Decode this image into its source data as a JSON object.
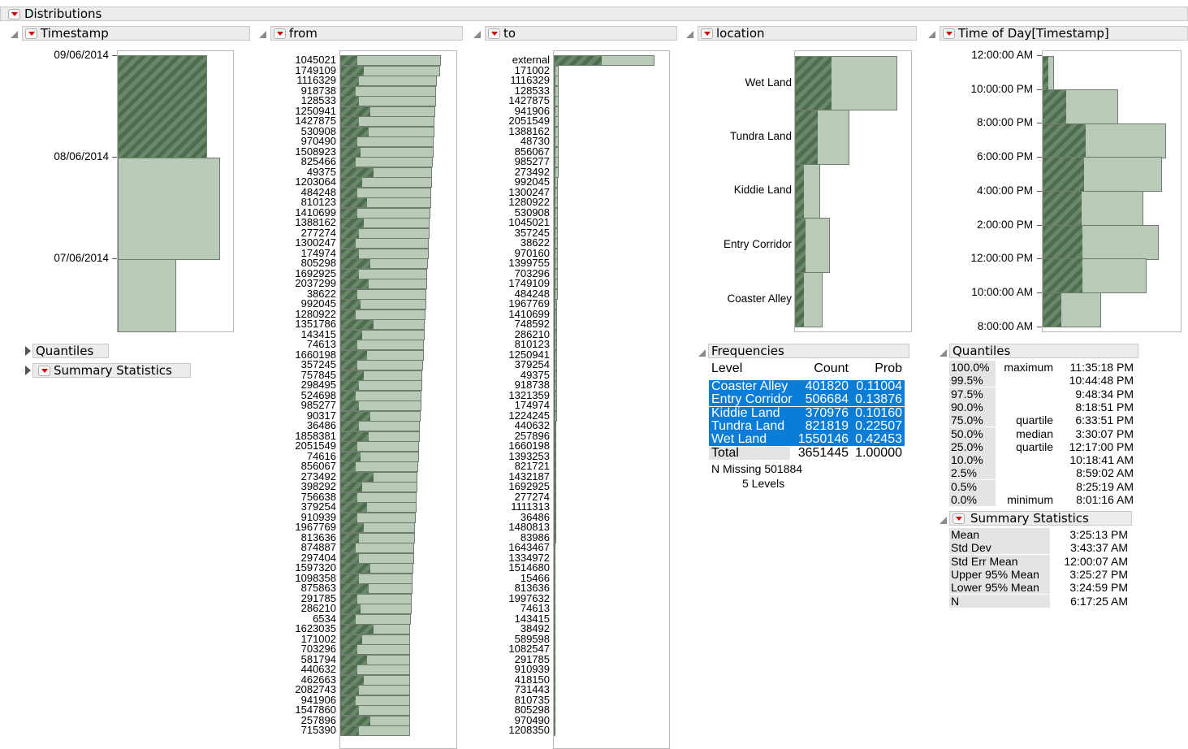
{
  "report_title": "Distributions",
  "timestamp": {
    "title": "Timestamp",
    "ticks": [
      "09/06/2014",
      "08/06/2014",
      "07/06/2014"
    ],
    "collapsed_sections": [
      "Quantiles",
      "Summary Statistics"
    ]
  },
  "from": {
    "title": "from",
    "labels": [
      "1045021",
      "1749109",
      "1116329",
      "918738",
      "128533",
      "1250941",
      "1427875",
      "530908",
      "970490",
      "1508923",
      "825466",
      "49375",
      "1203064",
      "484248",
      "810123",
      "1410699",
      "1388162",
      "277274",
      "1300247",
      "174974",
      "805298",
      "1692925",
      "2037299",
      "38622",
      "992045",
      "1280922",
      "1351786",
      "143415",
      "74613",
      "1660198",
      "357245",
      "757845",
      "298495",
      "524698",
      "985277",
      "90317",
      "36486",
      "1858381",
      "2051549",
      "74616",
      "856067",
      "273492",
      "398292",
      "756638",
      "379254",
      "910939",
      "1967769",
      "813636",
      "874887",
      "297404",
      "1597320",
      "1098358",
      "875863",
      "291785",
      "286210",
      "6534",
      "1623035",
      "171002",
      "703296",
      "581794",
      "440632",
      "462663",
      "2082743",
      "941906",
      "1547860",
      "257896",
      "715390"
    ]
  },
  "to": {
    "title": "to",
    "labels": [
      "external",
      "171002",
      "1116329",
      "128533",
      "1427875",
      "941906",
      "2051549",
      "1388162",
      "48730",
      "856067",
      "985277",
      "273492",
      "992045",
      "1300247",
      "1280922",
      "530908",
      "1045021",
      "357245",
      "38622",
      "970160",
      "1399755",
      "703296",
      "1749109",
      "484248",
      "1967769",
      "1410699",
      "748592",
      "286210",
      "810123",
      "1250941",
      "379254",
      "49375",
      "918738",
      "1321359",
      "174974",
      "1224245",
      "440632",
      "257896",
      "1660198",
      "1393253",
      "821721",
      "1432187",
      "1692925",
      "277274",
      "1111313",
      "36486",
      "1480813",
      "83986",
      "1643467",
      "1334972",
      "1514680",
      "15466",
      "813636",
      "1997632",
      "74613",
      "143415",
      "38492",
      "589598",
      "1082547",
      "291785",
      "910939",
      "418150",
      "731443",
      "810735",
      "805298",
      "970490",
      "1208350"
    ]
  },
  "location": {
    "title": "location",
    "levels": [
      "Wet Land",
      "Tundra Land",
      "Kiddie Land",
      "Entry Corridor",
      "Coaster Alley"
    ],
    "frequencies": {
      "title": "Frequencies",
      "headers": [
        "Level",
        "Count",
        "Prob"
      ],
      "rows": [
        {
          "level": "Coaster Alley",
          "count": "401820",
          "prob": "0.11004"
        },
        {
          "level": "Entry Corridor",
          "count": "506684",
          "prob": "0.13876"
        },
        {
          "level": "Kiddie Land",
          "count": "370976",
          "prob": "0.10160"
        },
        {
          "level": "Tundra Land",
          "count": "821819",
          "prob": "0.22507"
        },
        {
          "level": "Wet Land",
          "count": "1550146",
          "prob": "0.42453"
        }
      ],
      "total": {
        "level": "Total",
        "count": "3651445",
        "prob": "1.00000"
      },
      "n_missing": "N Missing  501884",
      "levels": "5  Levels"
    }
  },
  "time_of_day": {
    "title": "Time of Day[Timestamp]",
    "ticks": [
      "12:00:00 AM",
      "10:00:00 PM",
      "8:00:00 PM",
      "6:00:00 PM",
      "4:00:00 PM",
      "2:00:00 PM",
      "12:00:00 PM",
      "10:00:00 AM",
      "8:00:00 AM"
    ],
    "quantiles": {
      "title": "Quantiles",
      "rows": [
        {
          "pct": "100.0%",
          "name": "maximum",
          "value": "11:35:18 PM"
        },
        {
          "pct": "99.5%",
          "name": "",
          "value": "10:44:48 PM"
        },
        {
          "pct": "97.5%",
          "name": "",
          "value": "9:48:34 PM"
        },
        {
          "pct": "90.0%",
          "name": "",
          "value": "8:18:51 PM"
        },
        {
          "pct": "75.0%",
          "name": "quartile",
          "value": "6:33:51 PM"
        },
        {
          "pct": "50.0%",
          "name": "median",
          "value": "3:30:07 PM"
        },
        {
          "pct": "25.0%",
          "name": "quartile",
          "value": "12:17:00 PM"
        },
        {
          "pct": "10.0%",
          "name": "",
          "value": "10:18:41 AM"
        },
        {
          "pct": "2.5%",
          "name": "",
          "value": "8:59:02 AM"
        },
        {
          "pct": "0.5%",
          "name": "",
          "value": "8:25:19 AM"
        },
        {
          "pct": "0.0%",
          "name": "minimum",
          "value": "8:01:16 AM"
        }
      ]
    },
    "summary": {
      "title": "Summary Statistics",
      "rows": [
        {
          "name": "Mean",
          "value": "3:25:13 PM"
        },
        {
          "name": "Std Dev",
          "value": "3:43:37 AM"
        },
        {
          "name": "Std Err Mean",
          "value": "12:00:07 AM"
        },
        {
          "name": "Upper 95% Mean",
          "value": "3:25:27 PM"
        },
        {
          "name": "Lower 95% Mean",
          "value": "3:24:59 PM"
        },
        {
          "name": "N",
          "value": "6:17:25 AM"
        }
      ]
    }
  },
  "colors": {
    "bar": "#b9cbb8",
    "selected": "#5a7a5a",
    "highlight": "#0b7dd6"
  }
}
